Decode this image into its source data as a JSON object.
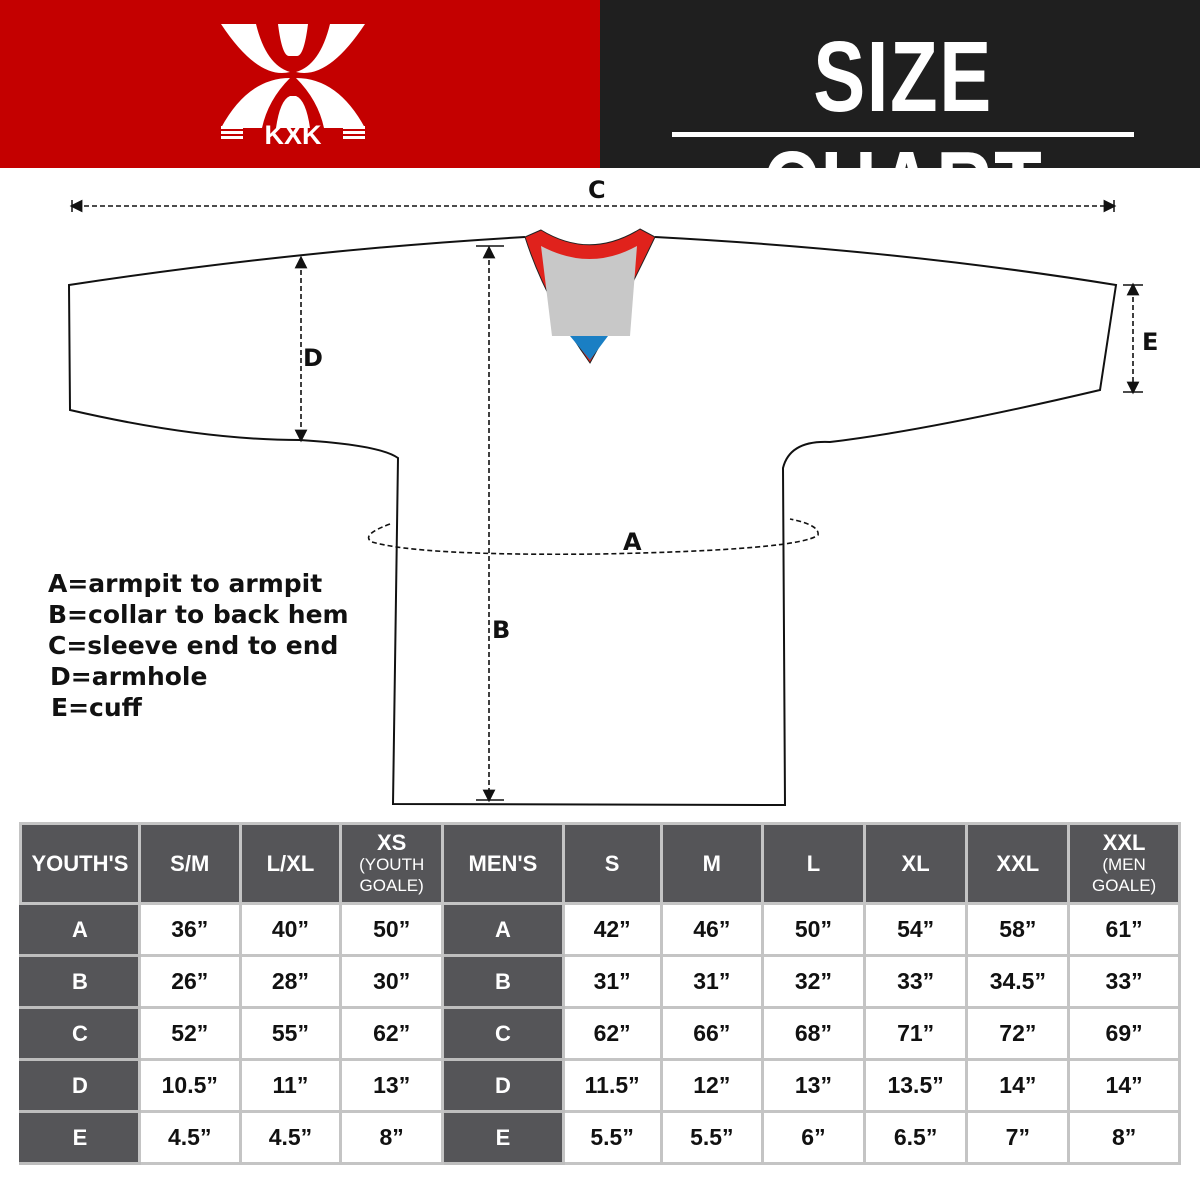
{
  "brand": {
    "logo_text": "KXK"
  },
  "header": {
    "title": "SIZE CHART"
  },
  "diagram": {
    "labels": {
      "a": "A",
      "b": "B",
      "c": "C",
      "d": "D",
      "e": "E"
    }
  },
  "legend": [
    "A=armpit to armpit",
    "B=collar to back hem",
    "C=sleeve end to end",
    "D=armhole",
    "E=cuff"
  ],
  "table": {
    "columns": [
      {
        "label": "YOUTH'S"
      },
      {
        "label": "S/M"
      },
      {
        "label": "L/XL"
      },
      {
        "label": "XS",
        "sub": "(YOUTH GOALE)"
      },
      {
        "label": "MEN'S"
      },
      {
        "label": "S"
      },
      {
        "label": "M"
      },
      {
        "label": "L"
      },
      {
        "label": "XL"
      },
      {
        "label": "XXL"
      },
      {
        "label": "XXL",
        "sub": "(MEN GOALE)"
      }
    ],
    "rows": [
      [
        "A",
        "36”",
        "40”",
        "50”",
        "A",
        "42”",
        "46”",
        "50”",
        "54”",
        "58”",
        "61”"
      ],
      [
        "B",
        "26”",
        "28”",
        "30”",
        "B",
        "31”",
        "31”",
        "32”",
        "33”",
        "34.5”",
        "33”"
      ],
      [
        "C",
        "52”",
        "55”",
        "62”",
        "C",
        "62”",
        "66”",
        "68”",
        "71”",
        "72”",
        "69”"
      ],
      [
        "D",
        "10.5”",
        "11”",
        "13”",
        "D",
        "11.5”",
        "12”",
        "13”",
        "13.5”",
        "14”",
        "14”"
      ],
      [
        "E",
        "4.5”",
        "4.5”",
        "8”",
        "E",
        "5.5”",
        "5.5”",
        "6”",
        "6.5”",
        "7”",
        "8”"
      ]
    ]
  },
  "colors": {
    "brand_red": "#c40000",
    "header_dark": "#1f1f1f",
    "table_header": "#555558",
    "collar_red": "#e0221c",
    "collar_gray": "#c8c8c8",
    "collar_blue": "#1a7fc4"
  }
}
